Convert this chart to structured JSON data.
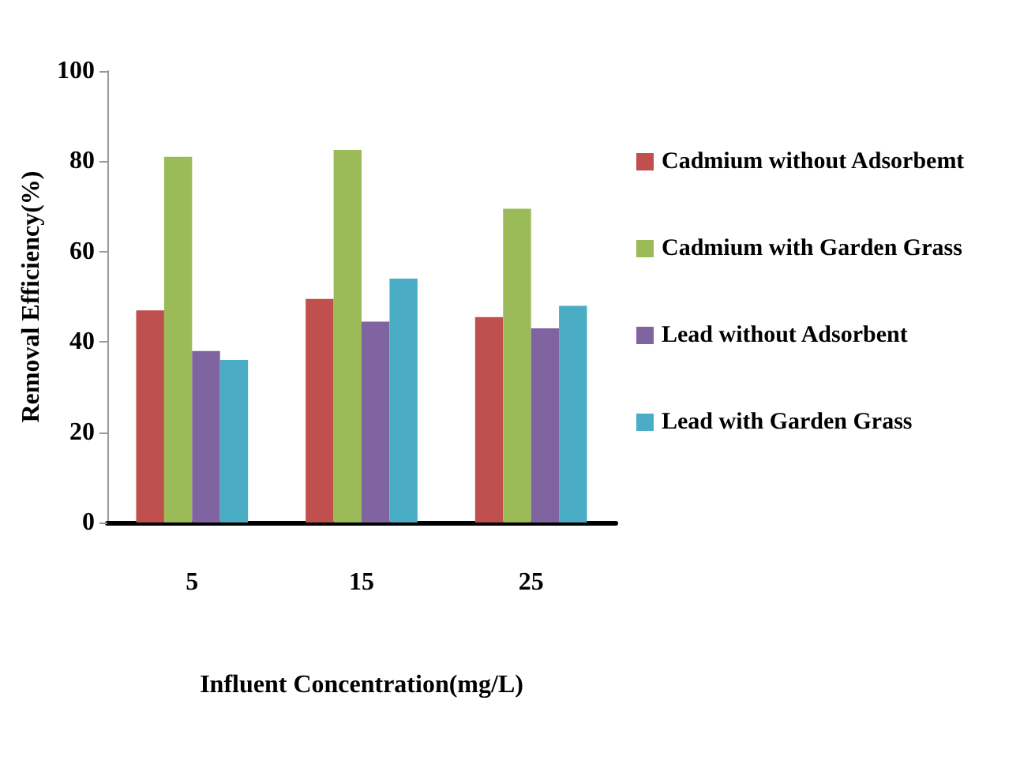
{
  "chart_data": {
    "type": "bar",
    "xlabel": "Influent Concentration(mg/L)",
    "ylabel": "Removal Efficiency(%)",
    "categories": [
      "5",
      "15",
      "25"
    ],
    "series": [
      {
        "name": "Cadmium without Adsorbemt",
        "color": "#c0504d",
        "values": [
          47,
          49.5,
          45.5
        ]
      },
      {
        "name": "Cadmium with Garden Grass",
        "color": "#9bbb59",
        "values": [
          81,
          82.5,
          69.5
        ]
      },
      {
        "name": "Lead without Adsorbent",
        "color": "#8064a2",
        "values": [
          38,
          44.5,
          43
        ]
      },
      {
        "name": "Lead with Garden Grass",
        "color": "#4bacc6",
        "values": [
          36,
          54,
          48
        ]
      }
    ],
    "ylim": [
      0,
      100
    ],
    "yticks": [
      0,
      20,
      40,
      60,
      80,
      100
    ],
    "grid": false,
    "legend": "right"
  }
}
